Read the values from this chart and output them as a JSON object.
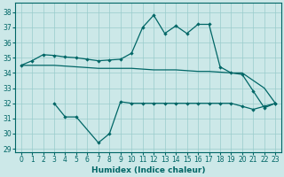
{
  "xlabel": "Humidex (Indice chaleur)",
  "background_color": "#cce8e8",
  "grid_color": "#99cccc",
  "line_color": "#006666",
  "xlim": [
    -0.5,
    23.5
  ],
  "ylim": [
    28.8,
    38.6
  ],
  "yticks": [
    29,
    30,
    31,
    32,
    33,
    34,
    35,
    36,
    37,
    38
  ],
  "xticks": [
    0,
    1,
    2,
    3,
    4,
    5,
    6,
    7,
    8,
    9,
    10,
    11,
    12,
    13,
    14,
    15,
    16,
    17,
    18,
    19,
    20,
    21,
    22,
    23
  ],
  "s1_x": [
    0,
    1,
    2,
    3,
    4,
    5,
    6,
    7,
    8,
    9,
    10,
    11,
    12,
    13,
    14,
    15,
    16,
    17,
    18,
    19,
    20,
    21,
    22,
    23
  ],
  "s1_y": [
    34.5,
    34.8,
    35.2,
    35.15,
    35.05,
    35.0,
    34.9,
    34.8,
    34.85,
    34.9,
    35.3,
    37.0,
    37.8,
    36.6,
    37.1,
    36.6,
    37.2,
    37.2,
    34.4,
    34.0,
    33.9,
    32.8,
    31.7,
    32.0
  ],
  "s2_x": [
    0,
    1,
    2,
    3,
    4,
    5,
    6,
    7,
    8,
    9,
    10,
    11,
    12,
    13,
    14,
    15,
    16,
    17,
    18,
    19,
    20,
    21,
    22,
    23
  ],
  "s2_y": [
    34.5,
    34.5,
    34.5,
    34.5,
    34.45,
    34.4,
    34.35,
    34.3,
    34.3,
    34.3,
    34.3,
    34.25,
    34.2,
    34.2,
    34.2,
    34.15,
    34.1,
    34.1,
    34.05,
    34.0,
    34.0,
    33.5,
    33.0,
    32.0
  ],
  "s3_x": [
    3,
    4,
    5,
    7,
    8,
    9,
    10,
    11,
    12,
    13,
    14,
    15,
    16,
    17,
    18,
    19,
    20,
    21,
    22,
    23
  ],
  "s3_y": [
    32.0,
    31.1,
    31.1,
    29.4,
    30.0,
    32.1,
    32.0,
    32.0,
    32.0,
    32.0,
    32.0,
    32.0,
    32.0,
    32.0,
    32.0,
    32.0,
    31.8,
    31.6,
    31.8,
    32.0
  ],
  "s3_markers_x": [
    3,
    4,
    5,
    7,
    8,
    9,
    20,
    21,
    22,
    23
  ],
  "s3_markers_y": [
    32.0,
    31.1,
    31.1,
    29.4,
    30.0,
    32.1,
    31.8,
    31.6,
    31.8,
    32.0
  ]
}
